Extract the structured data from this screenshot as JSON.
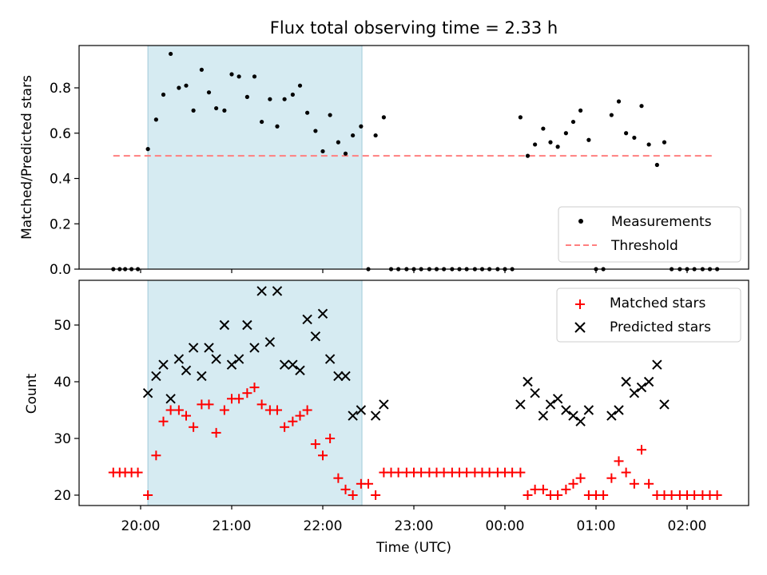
{
  "chart_data": [
    {
      "type": "scatter",
      "title": "Flux total observing time = 2.33 h",
      "xlabel": "",
      "ylabel": "Matched/Predicted stars",
      "ylim": [
        0,
        1.0
      ],
      "yticks": [
        "0.0",
        "0.2",
        "0.4",
        "0.6",
        "0.8"
      ],
      "legend_position": "lower-right",
      "highlight_window_hours": [
        20.08,
        22.43
      ],
      "series": [
        {
          "name": "Measurements",
          "marker": "dot",
          "color": "#000000",
          "x": [
            19.7,
            19.77,
            19.83,
            19.9,
            19.97,
            20.08,
            20.17,
            20.25,
            20.33,
            20.42,
            20.5,
            20.58,
            20.67,
            20.75,
            20.83,
            20.92,
            21.0,
            21.08,
            21.17,
            21.25,
            21.33,
            21.42,
            21.5,
            21.58,
            21.67,
            21.75,
            21.83,
            21.92,
            22.0,
            22.08,
            22.17,
            22.25,
            22.33,
            22.42,
            22.5,
            22.58,
            22.67,
            22.75,
            22.83,
            22.92,
            23.0,
            23.08,
            23.17,
            23.25,
            23.33,
            23.42,
            23.5,
            23.58,
            23.67,
            23.75,
            23.83,
            23.92,
            24.0,
            24.08,
            24.17,
            24.25,
            24.33,
            24.42,
            24.5,
            24.58,
            24.67,
            24.75,
            24.83,
            24.92,
            25.0,
            25.08,
            25.17,
            25.25,
            25.33,
            25.42,
            25.5,
            25.58,
            25.67,
            25.75,
            25.83,
            25.92,
            26.0,
            26.08,
            26.17,
            26.25,
            26.33
          ],
          "y": [
            0,
            0,
            0,
            0,
            0,
            0.53,
            0.66,
            0.77,
            0.95,
            0.8,
            0.81,
            0.7,
            0.88,
            0.78,
            0.71,
            0.7,
            0.86,
            0.85,
            0.76,
            0.85,
            0.65,
            0.75,
            0.63,
            0.75,
            0.77,
            0.81,
            0.69,
            0.61,
            0.52,
            0.68,
            0.56,
            0.51,
            0.59,
            0.63,
            0,
            0.59,
            0.67,
            0,
            0,
            0,
            0,
            0,
            0,
            0,
            0,
            0,
            0,
            0,
            0,
            0,
            0,
            0,
            0,
            0,
            0.67,
            0.5,
            0.55,
            0.62,
            0.56,
            0.54,
            0.6,
            0.65,
            0.7,
            0.57,
            0,
            0,
            0.68,
            0.74,
            0.6,
            0.58,
            0.72,
            0.55,
            0.46,
            0.56,
            0,
            0,
            0,
            0,
            0,
            0,
            0
          ]
        },
        {
          "name": "Threshold",
          "marker": "dashed-line",
          "color": "#ff7f7f",
          "x": [
            19.7,
            26.3
          ],
          "y": [
            0.5,
            0.5
          ]
        }
      ]
    },
    {
      "type": "scatter",
      "title": "",
      "xlabel": "Time (UTC)",
      "ylabel": "Count",
      "ylim": [
        18.0,
        58.0
      ],
      "yticks": [
        "20",
        "30",
        "40",
        "50"
      ],
      "xticks": [
        "20:00",
        "21:00",
        "22:00",
        "23:00",
        "00:00",
        "01:00",
        "02:00"
      ],
      "legend_position": "upper-right",
      "highlight_window_hours": [
        20.08,
        22.43
      ],
      "series": [
        {
          "name": "Matched stars",
          "marker": "plus",
          "color": "#ff0000",
          "x": [
            19.7,
            19.77,
            19.83,
            19.9,
            19.97,
            20.08,
            20.17,
            20.25,
            20.33,
            20.42,
            20.5,
            20.58,
            20.67,
            20.75,
            20.83,
            20.92,
            21.0,
            21.08,
            21.17,
            21.25,
            21.33,
            21.42,
            21.5,
            21.58,
            21.67,
            21.75,
            21.83,
            21.92,
            22.0,
            22.08,
            22.17,
            22.25,
            22.33,
            22.42,
            22.5,
            22.58,
            22.67,
            22.75,
            22.83,
            22.92,
            23.0,
            23.08,
            23.17,
            23.25,
            23.33,
            23.42,
            23.5,
            23.58,
            23.67,
            23.75,
            23.83,
            23.92,
            24.0,
            24.08,
            24.17,
            24.25,
            24.33,
            24.42,
            24.5,
            24.58,
            24.67,
            24.75,
            24.83,
            24.92,
            25.0,
            25.08,
            25.17,
            25.25,
            25.33,
            25.42,
            25.5,
            25.58,
            25.67,
            25.75,
            25.83,
            25.92,
            26.0,
            26.08,
            26.17,
            26.25,
            26.33
          ],
          "y": [
            24,
            24,
            24,
            24,
            24,
            20,
            27,
            33,
            35,
            35,
            34,
            32,
            36,
            36,
            31,
            35,
            37,
            37,
            38,
            39,
            36,
            35,
            35,
            32,
            33,
            34,
            35,
            29,
            27,
            30,
            23,
            21,
            20,
            22,
            22,
            20,
            24,
            24,
            24,
            24,
            24,
            24,
            24,
            24,
            24,
            24,
            24,
            24,
            24,
            24,
            24,
            24,
            24,
            24,
            24,
            20,
            21,
            21,
            20,
            20,
            21,
            22,
            23,
            20,
            20,
            20,
            23,
            26,
            24,
            22,
            28,
            22,
            20,
            20,
            20,
            20,
            20,
            20,
            20,
            20,
            20
          ]
        },
        {
          "name": "Predicted stars",
          "marker": "x",
          "color": "#000000",
          "x": [
            20.08,
            20.17,
            20.25,
            20.33,
            20.42,
            20.5,
            20.58,
            20.67,
            20.75,
            20.83,
            20.92,
            21.0,
            21.08,
            21.17,
            21.25,
            21.33,
            21.42,
            21.5,
            21.58,
            21.67,
            21.75,
            21.83,
            21.92,
            22.0,
            22.08,
            22.17,
            22.25,
            22.33,
            22.42,
            22.58,
            22.67,
            24.17,
            24.25,
            24.33,
            24.42,
            24.5,
            24.58,
            24.67,
            24.75,
            24.83,
            24.92,
            25.17,
            25.25,
            25.33,
            25.42,
            25.5,
            25.58,
            25.67,
            25.75
          ],
          "y": [
            38,
            41,
            43,
            37,
            44,
            42,
            46,
            41,
            46,
            44,
            50,
            43,
            44,
            50,
            46,
            56,
            47,
            56,
            43,
            43,
            42,
            51,
            48,
            52,
            44,
            41,
            41,
            34,
            35,
            34,
            36,
            36,
            40,
            38,
            34,
            36,
            37,
            35,
            34,
            33,
            35,
            34,
            35,
            40,
            38,
            39,
            40,
            43,
            36
          ]
        }
      ]
    }
  ]
}
